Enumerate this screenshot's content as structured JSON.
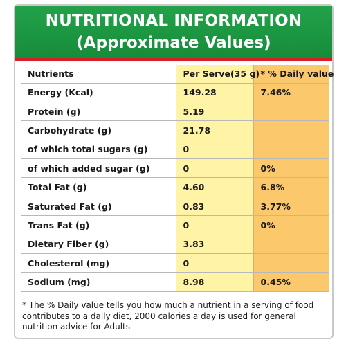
{
  "header": {
    "title": "NUTRITIONAL INFORMATION",
    "subtitle": "(Approximate Values)"
  },
  "table": {
    "columns": [
      "Nutrients",
      "Per Serve(35 g)",
      "* % Daily value"
    ],
    "rows": [
      {
        "nutrient": "Energy (Kcal)",
        "per_serve": "149.28",
        "daily_value": "7.46%"
      },
      {
        "nutrient": "Protein (g)",
        "per_serve": "5.19",
        "daily_value": ""
      },
      {
        "nutrient": "Carbohydrate (g)",
        "per_serve": "21.78",
        "daily_value": ""
      },
      {
        "nutrient": "of which total sugars (g)",
        "per_serve": "0",
        "daily_value": ""
      },
      {
        "nutrient": "of which added sugar (g)",
        "per_serve": "0",
        "daily_value": "0%"
      },
      {
        "nutrient": "Total Fat (g)",
        "per_serve": "4.60",
        "daily_value": "6.8%"
      },
      {
        "nutrient": "Saturated Fat (g)",
        "per_serve": "0.83",
        "daily_value": "3.77%"
      },
      {
        "nutrient": "Trans Fat (g)",
        "per_serve": "0",
        "daily_value": "0%"
      },
      {
        "nutrient": "Dietary Fiber (g)",
        "per_serve": "3.83",
        "daily_value": ""
      },
      {
        "nutrient": "Cholesterol (mg)",
        "per_serve": "0",
        "daily_value": ""
      },
      {
        "nutrient": "Sodium (mg)",
        "per_serve": "8.98",
        "daily_value": "0.45%"
      }
    ]
  },
  "footnote": "* The % Daily value tells you how much a nutrient in a serving of food contributes to a daily diet, 2000 calories a day is used for general nutrition advice for Adults",
  "colors": {
    "header_green": "#1f9a45",
    "header_border_red": "#d51f26",
    "per_serve_column": "#fff4a6",
    "daily_value_column": "#fbc86b"
  }
}
